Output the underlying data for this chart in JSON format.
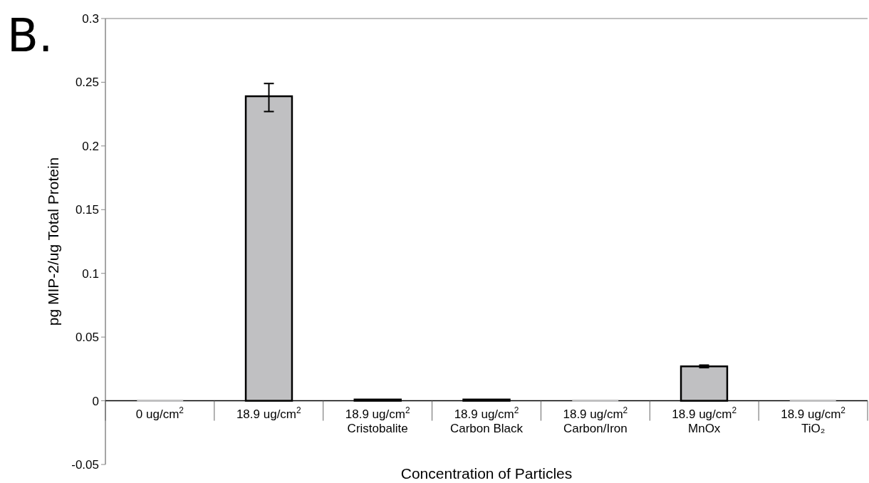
{
  "chart_data": {
    "type": "bar",
    "title": "B.",
    "xlabel": "Concentration of Particles",
    "ylabel": "pg MIP-2/ug Total Protein",
    "categories": [
      "0 ug/cm$^{2}$",
      "18.9 ug/cm$^{2}$",
      "18.9 ug/cm$^{2}$\nCristobalite",
      "18.9 ug/cm$^{2}$\nCarbon Black",
      "18.9 ug/cm$^{2}$\nCarbon/Iron",
      "18.9 ug/cm$^{2}$\nMnOx",
      "18.9 ug/cm$^{2}$\nTiO₂"
    ],
    "values": [
      0,
      0.239,
      0.001,
      0.001,
      0,
      0.027,
      0
    ],
    "errors": [
      null,
      [
        0.227,
        0.249
      ],
      null,
      null,
      null,
      [
        0.026,
        0.028
      ],
      null
    ],
    "color": "#c0c0c2",
    "ylim": [
      -0.05,
      0.3
    ],
    "yticks": [
      -0.05,
      0,
      0.05,
      0.1,
      0.15,
      0.2,
      0.25,
      0.3
    ],
    "grid": false
  }
}
